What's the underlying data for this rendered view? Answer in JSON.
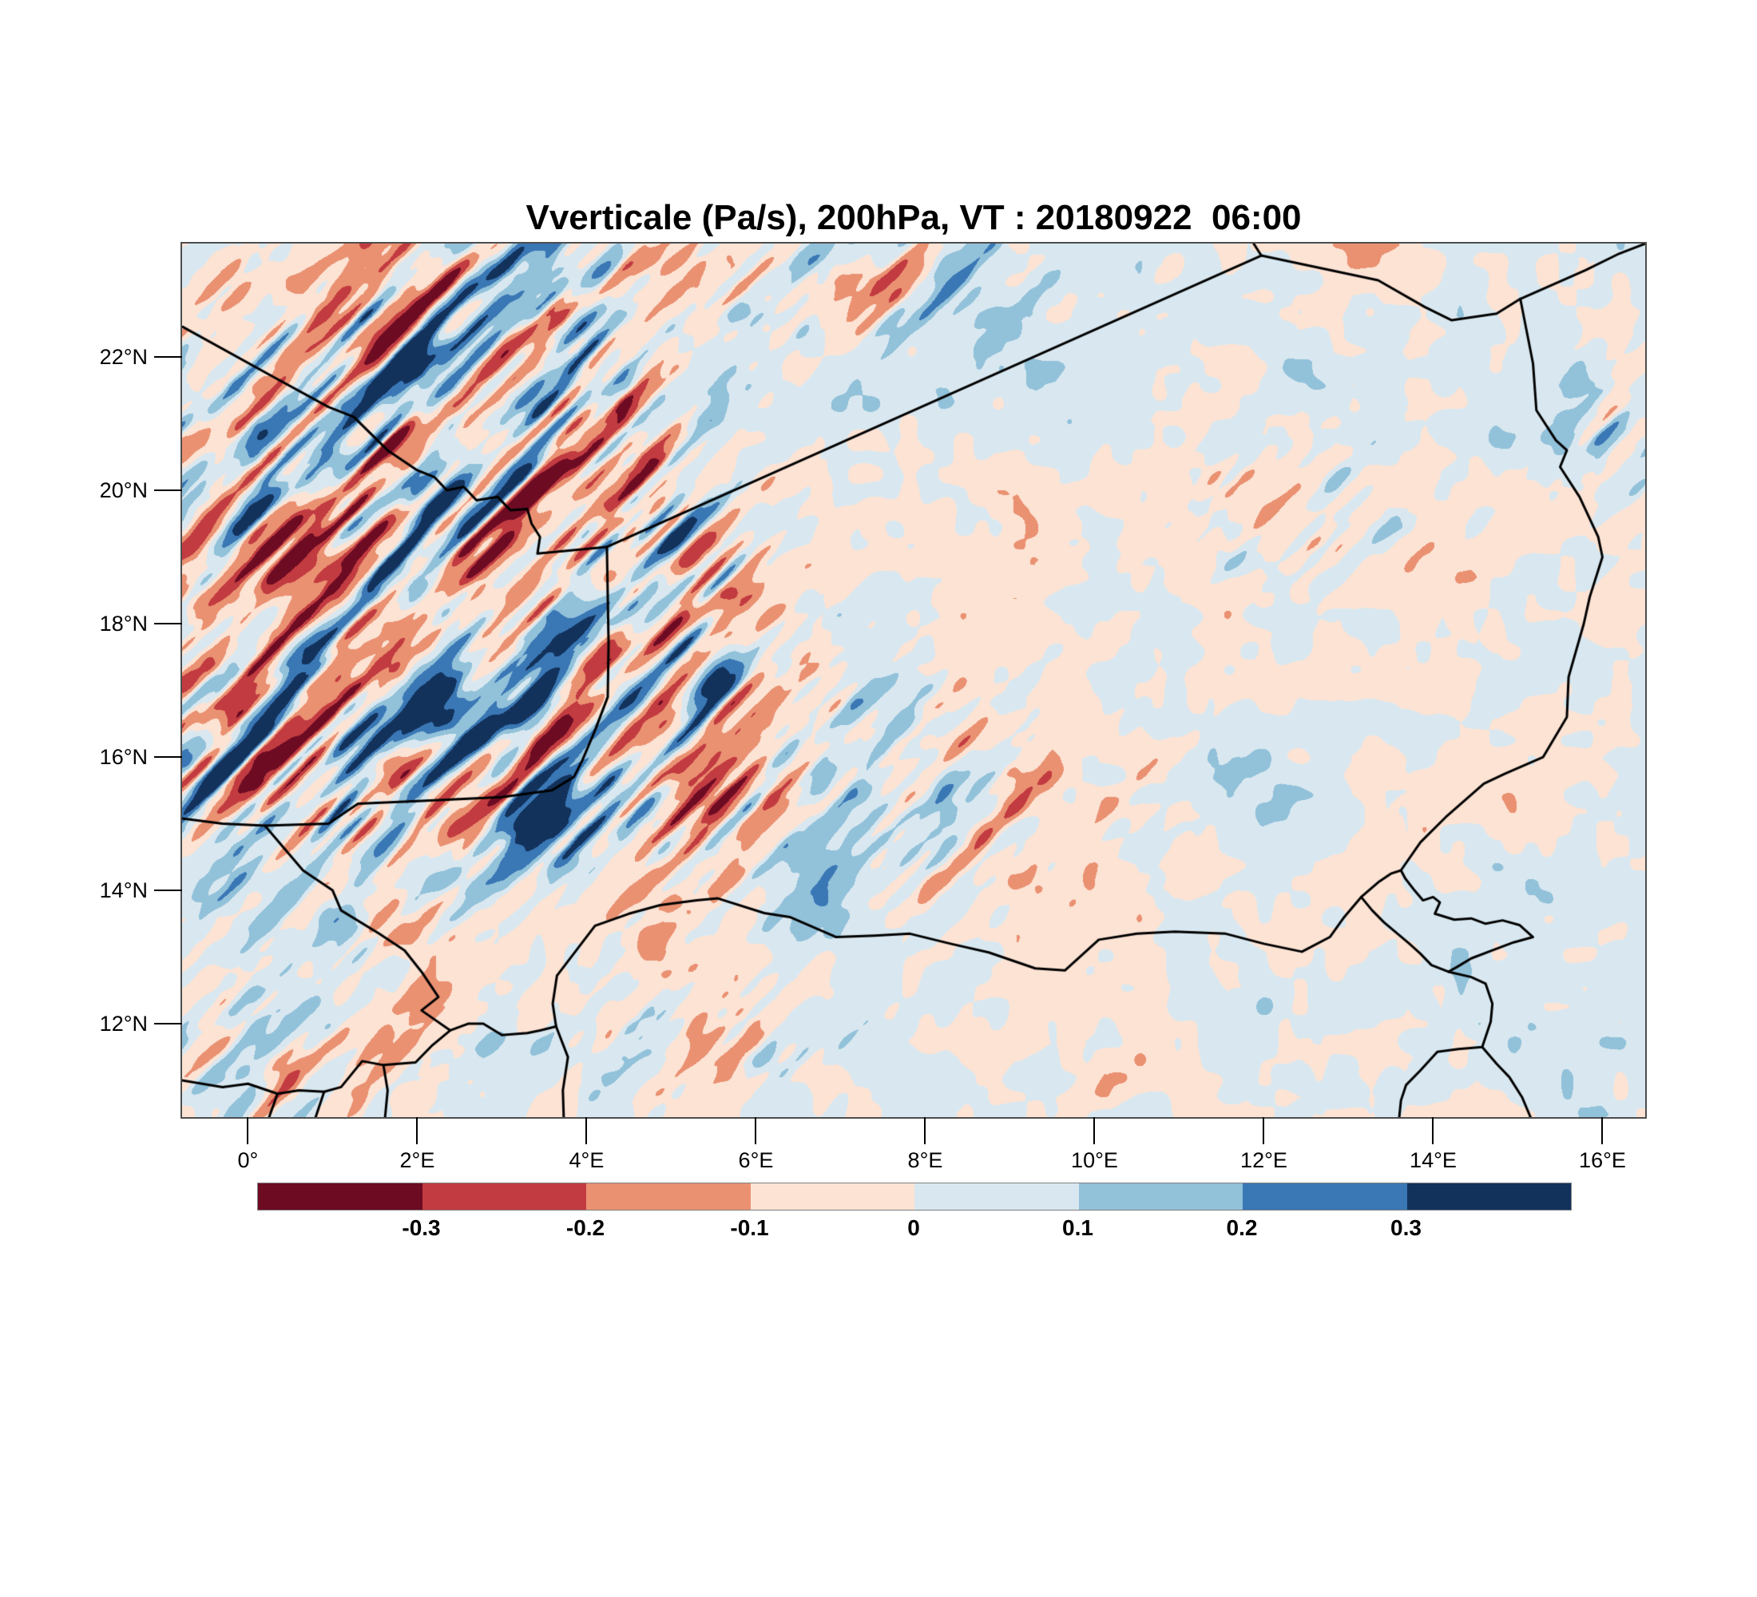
{
  "title": "Vverticale (Pa/s), 200hPa, VT : 20180922  06:00",
  "y_axis": {
    "ticks": [
      {
        "value": 22,
        "label": "22°N"
      },
      {
        "value": 20,
        "label": "20°N"
      },
      {
        "value": 18,
        "label": "18°N"
      },
      {
        "value": 16,
        "label": "16°N"
      },
      {
        "value": 14,
        "label": "14°N"
      },
      {
        "value": 12,
        "label": "12°N"
      }
    ]
  },
  "x_axis": {
    "ticks": [
      {
        "value": 0,
        "label": "0°"
      },
      {
        "value": 2,
        "label": "2°E"
      },
      {
        "value": 4,
        "label": "4°E"
      },
      {
        "value": 6,
        "label": "6°E"
      },
      {
        "value": 8,
        "label": "8°E"
      },
      {
        "value": 10,
        "label": "10°E"
      },
      {
        "value": 12,
        "label": "12°E"
      },
      {
        "value": 14,
        "label": "14°E"
      },
      {
        "value": 16,
        "label": "16°E"
      }
    ]
  },
  "colorbar": {
    "tick_labels": [
      "-0.3",
      "-0.2",
      "-0.1",
      "0",
      "0.1",
      "0.2",
      "0.3"
    ],
    "colors": [
      "#6d0b23",
      "#c23b40",
      "#ea9172",
      "#fce3d4",
      "#d9e8f0",
      "#92c1da",
      "#3a77b5",
      "#12325c"
    ],
    "outline_color": "#808080"
  },
  "chart_data": {
    "type": "heatmap",
    "title": "Vverticale (Pa/s), 200hPa, VT : 20180922  06:00",
    "variable": "Vverticale",
    "units": "Pa/s",
    "pressure_level": "200hPa",
    "valid_time": "20180922 06:00",
    "xlabel": "",
    "ylabel": "",
    "lon_range": [
      -0.778,
      16.505
    ],
    "lat_range": [
      10.6,
      23.7
    ],
    "grid": false,
    "legend_position": "bottom",
    "contour_levels": [
      -0.3,
      -0.2,
      -0.1,
      0,
      0.1,
      0.2,
      0.3
    ],
    "palette": [
      "#6d0b23",
      "#c23b40",
      "#ea9172",
      "#fce3d4",
      "#d9e8f0",
      "#92c1da",
      "#3a77b5",
      "#12325c"
    ],
    "border_color": "#000000",
    "field_model": {
      "comment": "procedural approximation of the filled-contour omega field: base low-freq blobs everywhere, strong anisotropic NE-SW streak activity concentrated per gaussian activity_centers",
      "seed": 7,
      "base_octaves": [
        {
          "amp": 0.09,
          "freq": 0.006
        },
        {
          "amp": 0.055,
          "freq": 0.02
        },
        {
          "amp": 0.05,
          "freq": 0.045
        }
      ],
      "streak_octaves": [
        {
          "amp": 0.42,
          "freq_along": 0.0048,
          "freq_across": 0.03
        },
        {
          "amp": 0.3,
          "freq_along": 0.011,
          "freq_across": 0.075
        }
      ],
      "activity_centers": [
        [
          1.2,
          19.2,
          2.4,
          2.9,
          1.0
        ],
        [
          3.1,
          21.9,
          1.1,
          1.6,
          0.95
        ],
        [
          2.2,
          16.4,
          2.5,
          1.5,
          1.0
        ],
        [
          4.3,
          18.7,
          1.0,
          1.5,
          0.9
        ],
        [
          7.2,
          15.4,
          2.1,
          1.1,
          0.55
        ],
        [
          12.4,
          19.6,
          1.1,
          0.7,
          0.45
        ],
        [
          16.3,
          20.8,
          0.6,
          1.0,
          0.6
        ],
        [
          7.0,
          23.2,
          1.6,
          0.7,
          0.55
        ],
        [
          0.2,
          11.4,
          1.1,
          0.8,
          0.55
        ],
        [
          4.9,
          11.8,
          1.7,
          0.7,
          0.4
        ]
      ]
    },
    "borders": [
      {
        "name": "mali-algeria",
        "points": [
          [
            -0.77,
            22.45
          ],
          [
            0.3,
            21.7
          ],
          [
            0.95,
            21.25
          ],
          [
            1.25,
            21.1
          ],
          [
            1.65,
            20.6
          ],
          [
            2.0,
            20.3
          ],
          [
            2.2,
            20.2
          ],
          [
            2.35,
            20.0
          ],
          [
            2.55,
            20.05
          ],
          [
            2.7,
            19.85
          ],
          [
            2.95,
            19.9
          ],
          [
            3.1,
            19.7
          ],
          [
            3.3,
            19.72
          ],
          [
            3.35,
            19.5
          ],
          [
            3.45,
            19.3
          ],
          [
            3.42,
            19.05
          ],
          [
            4.24,
            19.15
          ]
        ]
      },
      {
        "name": "algeria-niger",
        "points": [
          [
            4.24,
            19.15
          ],
          [
            11.97,
            23.52
          ]
        ]
      },
      {
        "name": "algeria-libya",
        "points": [
          [
            11.97,
            23.52
          ],
          [
            11.87,
            23.72
          ]
        ]
      },
      {
        "name": "libya-niger",
        "points": [
          [
            11.97,
            23.52
          ],
          [
            13.35,
            23.15
          ],
          [
            13.9,
            22.75
          ],
          [
            14.22,
            22.55
          ],
          [
            14.75,
            22.65
          ],
          [
            15.03,
            22.87
          ]
        ]
      },
      {
        "name": "libya-chad",
        "points": [
          [
            15.03,
            22.87
          ],
          [
            15.8,
            23.3
          ],
          [
            16.2,
            23.55
          ],
          [
            16.55,
            23.72
          ]
        ]
      },
      {
        "name": "chad-niger",
        "points": [
          [
            15.03,
            22.87
          ],
          [
            15.18,
            21.9
          ],
          [
            15.22,
            21.2
          ],
          [
            15.45,
            20.75
          ],
          [
            15.58,
            20.6
          ],
          [
            15.5,
            20.35
          ],
          [
            15.73,
            19.9
          ],
          [
            15.95,
            19.3
          ],
          [
            16.0,
            19.0
          ],
          [
            15.85,
            18.4
          ],
          [
            15.78,
            18.0
          ],
          [
            15.6,
            17.2
          ],
          [
            15.58,
            16.6
          ],
          [
            15.3,
            16.0
          ],
          [
            14.85,
            15.75
          ],
          [
            14.6,
            15.6
          ],
          [
            14.15,
            15.1
          ],
          [
            13.85,
            14.72
          ],
          [
            13.62,
            14.3
          ]
        ]
      },
      {
        "name": "lake-chad",
        "points": [
          [
            13.15,
            13.9
          ],
          [
            13.35,
            14.12
          ],
          [
            13.5,
            14.25
          ],
          [
            13.62,
            14.3
          ],
          [
            13.67,
            14.18
          ],
          [
            13.78,
            14.0
          ],
          [
            13.88,
            13.85
          ],
          [
            14.0,
            13.9
          ],
          [
            14.08,
            13.82
          ],
          [
            14.02,
            13.65
          ],
          [
            14.25,
            13.56
          ],
          [
            14.45,
            13.58
          ],
          [
            14.62,
            13.5
          ],
          [
            14.82,
            13.55
          ],
          [
            15.02,
            13.48
          ],
          [
            15.18,
            13.3
          ],
          [
            14.95,
            13.22
          ],
          [
            14.7,
            13.1
          ],
          [
            14.45,
            12.98
          ],
          [
            14.28,
            12.85
          ],
          [
            14.18,
            12.78
          ],
          [
            13.98,
            12.88
          ],
          [
            13.85,
            13.05
          ],
          [
            13.72,
            13.2
          ],
          [
            13.58,
            13.35
          ],
          [
            13.42,
            13.52
          ],
          [
            13.28,
            13.7
          ],
          [
            13.15,
            13.9
          ]
        ]
      },
      {
        "name": "niger-nigeria",
        "points": [
          [
            3.64,
            11.96
          ],
          [
            3.6,
            12.3
          ],
          [
            3.65,
            12.72
          ],
          [
            4.1,
            13.47
          ],
          [
            4.5,
            13.65
          ],
          [
            4.87,
            13.78
          ],
          [
            5.3,
            13.85
          ],
          [
            5.55,
            13.88
          ],
          [
            6.1,
            13.66
          ],
          [
            6.4,
            13.6
          ],
          [
            6.95,
            13.3
          ],
          [
            7.4,
            13.32
          ],
          [
            7.82,
            13.35
          ],
          [
            8.3,
            13.2
          ],
          [
            8.75,
            13.07
          ],
          [
            9.3,
            12.83
          ],
          [
            9.65,
            12.8
          ],
          [
            10.05,
            13.26
          ],
          [
            10.5,
            13.35
          ],
          [
            10.95,
            13.38
          ],
          [
            11.55,
            13.35
          ],
          [
            12.0,
            13.2
          ],
          [
            12.45,
            13.08
          ],
          [
            12.78,
            13.3
          ],
          [
            12.95,
            13.6
          ],
          [
            13.15,
            13.9
          ]
        ]
      },
      {
        "name": "niger-benin",
        "points": [
          [
            2.39,
            11.9
          ],
          [
            2.6,
            12.0
          ],
          [
            2.78,
            12.0
          ],
          [
            3.0,
            11.83
          ],
          [
            3.3,
            11.86
          ],
          [
            3.45,
            11.9
          ],
          [
            3.64,
            11.96
          ]
        ]
      },
      {
        "name": "benin-nigeria",
        "points": [
          [
            3.64,
            11.96
          ],
          [
            3.78,
            11.5
          ],
          [
            3.72,
            11.0
          ],
          [
            3.73,
            10.6
          ]
        ]
      },
      {
        "name": "burkina-niger",
        "points": [
          [
            0.2,
            14.97
          ],
          [
            0.65,
            14.3
          ],
          [
            1.0,
            14.0
          ],
          [
            1.1,
            13.7
          ],
          [
            1.55,
            13.35
          ],
          [
            1.85,
            13.1
          ],
          [
            2.05,
            12.78
          ],
          [
            2.25,
            12.4
          ],
          [
            2.05,
            12.2
          ],
          [
            2.39,
            11.9
          ]
        ]
      },
      {
        "name": "mali-niger",
        "points": [
          [
            -0.78,
            15.08
          ],
          [
            -0.3,
            15.0
          ],
          [
            0.2,
            14.97
          ],
          [
            0.95,
            15.0
          ],
          [
            1.3,
            15.3
          ],
          [
            2.0,
            15.34
          ],
          [
            3.0,
            15.4
          ],
          [
            3.59,
            15.5
          ],
          [
            3.85,
            15.7
          ],
          [
            3.95,
            15.95
          ],
          [
            4.1,
            16.4
          ],
          [
            4.25,
            16.9
          ],
          [
            4.26,
            17.7
          ],
          [
            4.24,
            19.15
          ]
        ]
      },
      {
        "name": "burkina-benin-togo",
        "points": [
          [
            -0.78,
            11.15
          ],
          [
            -0.3,
            11.05
          ],
          [
            0.0,
            11.1
          ],
          [
            0.35,
            10.95
          ],
          [
            0.6,
            11.0
          ],
          [
            0.9,
            10.98
          ],
          [
            1.1,
            11.05
          ],
          [
            1.35,
            11.44
          ],
          [
            1.6,
            11.38
          ],
          [
            1.98,
            11.42
          ],
          [
            2.18,
            11.68
          ],
          [
            2.39,
            11.9
          ]
        ]
      },
      {
        "name": "togo-benin",
        "points": [
          [
            1.6,
            11.38
          ],
          [
            1.65,
            11.0
          ],
          [
            1.62,
            10.6
          ]
        ]
      },
      {
        "name": "ghana-togo",
        "points": [
          [
            0.35,
            10.95
          ],
          [
            0.25,
            10.6
          ]
        ]
      },
      {
        "name": "togo-ghana-east",
        "points": [
          [
            0.9,
            10.98
          ],
          [
            0.8,
            10.6
          ]
        ]
      },
      {
        "name": "chad-cameroon",
        "points": [
          [
            14.18,
            12.78
          ],
          [
            14.45,
            12.7
          ],
          [
            14.62,
            12.6
          ],
          [
            14.7,
            12.3
          ],
          [
            14.68,
            12.03
          ],
          [
            14.58,
            11.65
          ],
          [
            14.3,
            11.62
          ],
          [
            14.05,
            11.58
          ],
          [
            13.85,
            11.3
          ],
          [
            13.68,
            11.08
          ],
          [
            13.62,
            10.85
          ],
          [
            13.6,
            10.6
          ]
        ]
      },
      {
        "name": "cameroon-chad-east",
        "points": [
          [
            14.58,
            11.65
          ],
          [
            14.75,
            11.4
          ],
          [
            14.9,
            11.2
          ],
          [
            15.05,
            10.9
          ],
          [
            15.15,
            10.6
          ]
        ]
      }
    ]
  }
}
